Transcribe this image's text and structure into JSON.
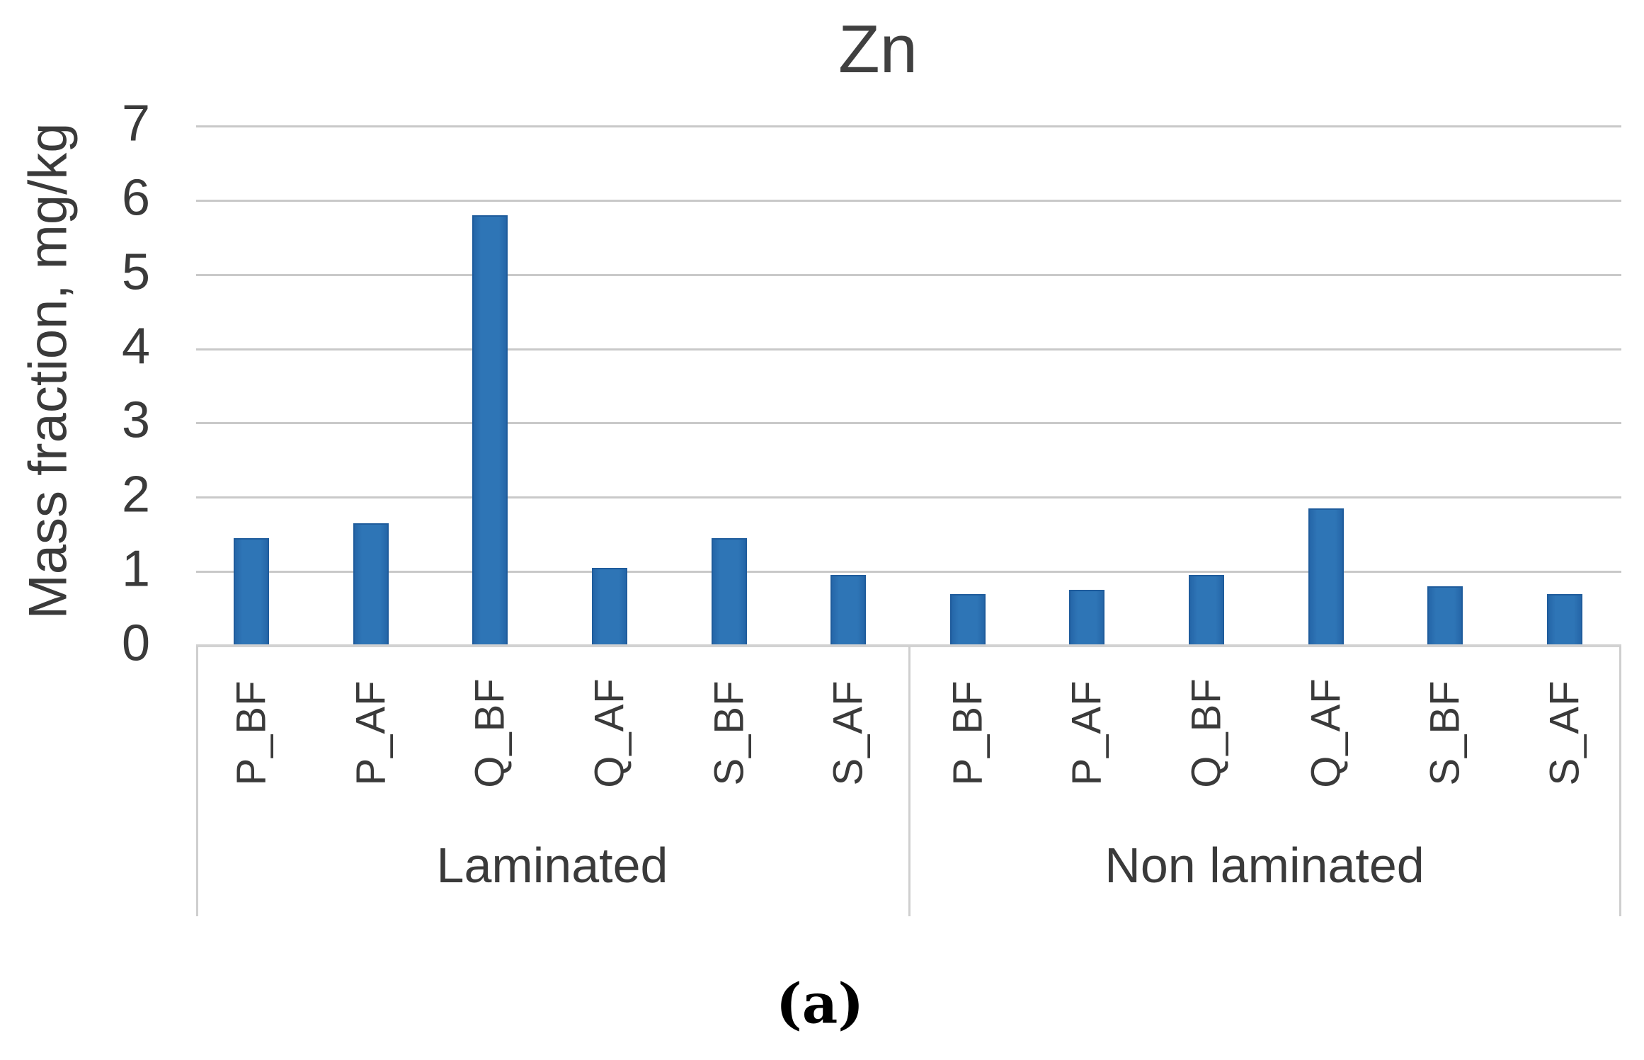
{
  "figure": {
    "caption": "(a)"
  },
  "chart_data": {
    "type": "bar",
    "title": "Zn",
    "xlabel": "",
    "ylabel": "Mass fraction, mg/kg",
    "ylim": [
      0,
      7
    ],
    "yticks": [
      0,
      1,
      2,
      3,
      4,
      5,
      6,
      7
    ],
    "grid": true,
    "legend": false,
    "bar_color": "#2E75B6",
    "gridline_color": "#C9C9C9",
    "categories": [
      "P_BF",
      "P_AF",
      "Q_BF",
      "Q_AF",
      "S_BF",
      "S_AF"
    ],
    "groups": [
      {
        "label": "Laminated",
        "values": [
          1.45,
          1.65,
          5.8,
          1.05,
          1.45,
          0.95
        ]
      },
      {
        "label": "Non laminated",
        "values": [
          0.7,
          0.75,
          0.95,
          1.85,
          0.8,
          0.7
        ]
      }
    ]
  }
}
